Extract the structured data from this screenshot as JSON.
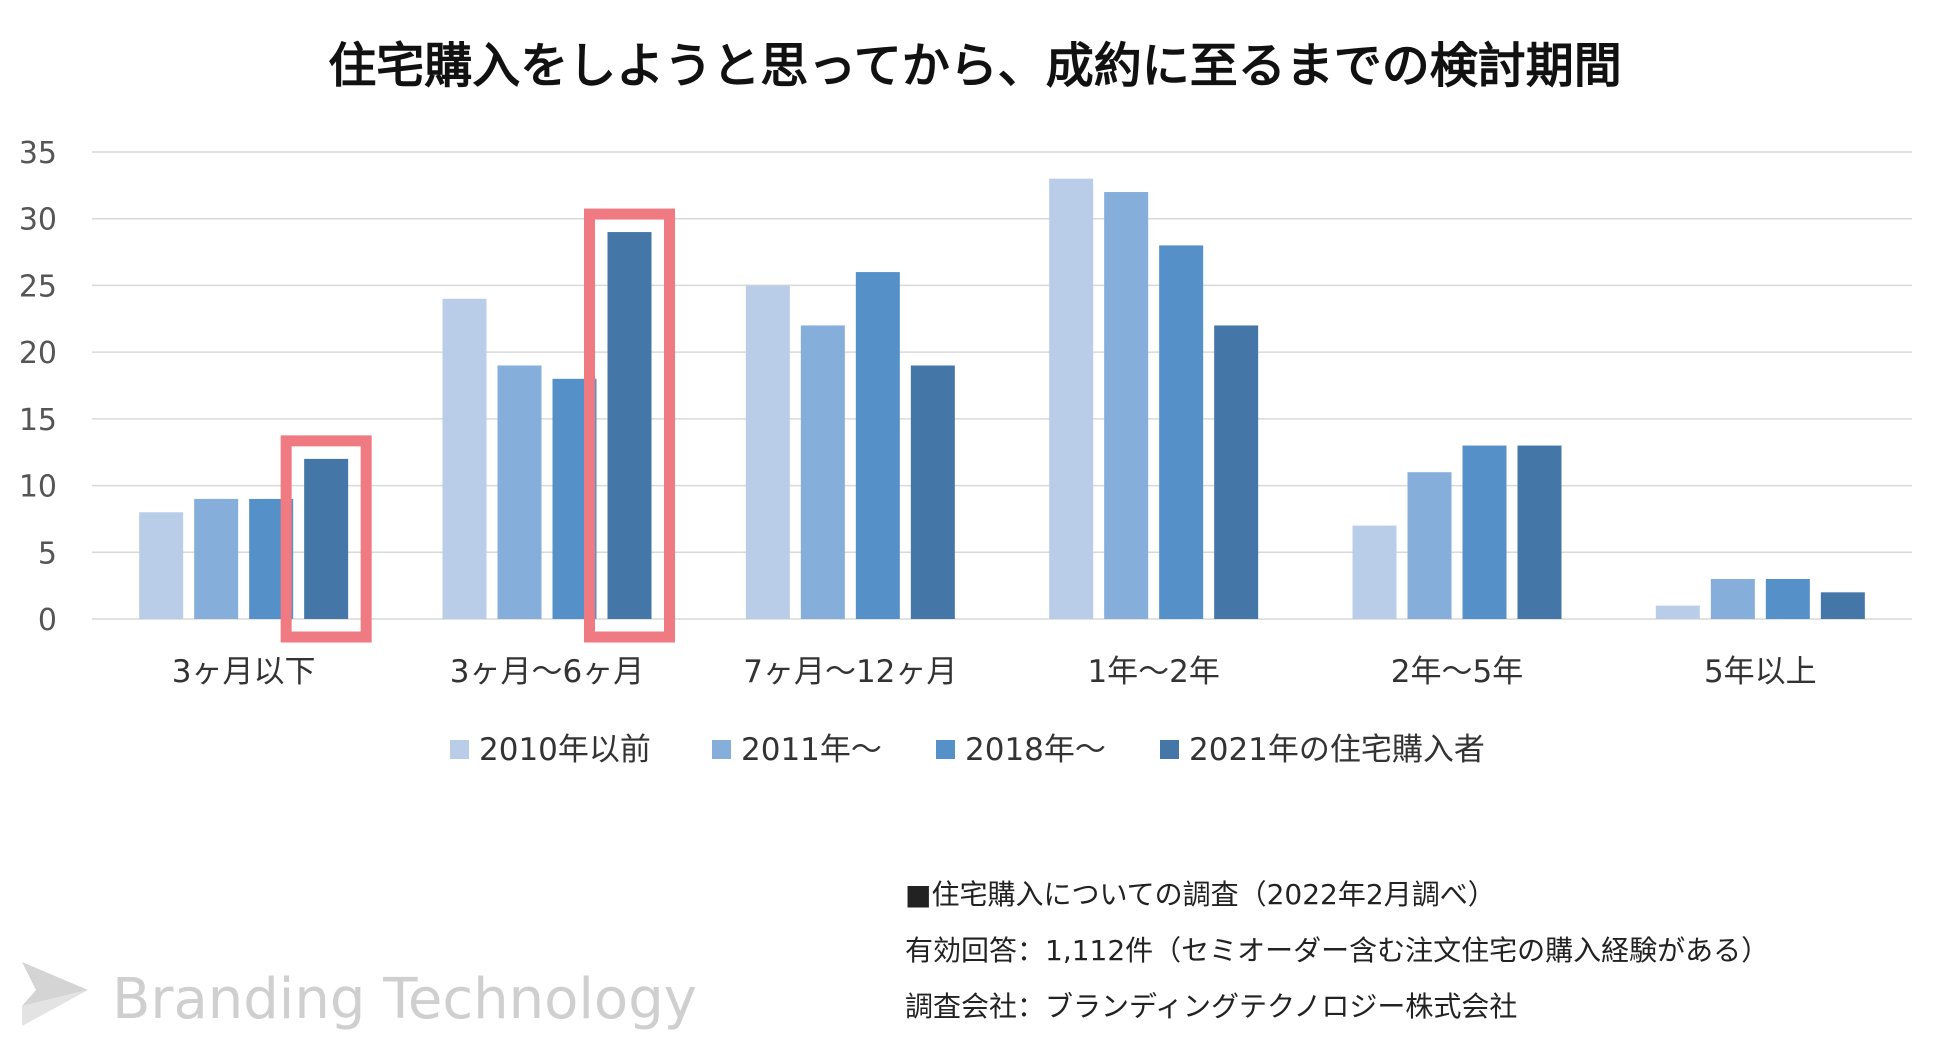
{
  "chart_data": {
    "type": "bar",
    "title": "住宅購入をしようと思ってから、成約に至るまでの検討期間",
    "xlabel": "",
    "ylabel": "",
    "ylim": [
      0,
      35
    ],
    "yticks": [
      "0",
      "5",
      "10",
      "15",
      "20",
      "25",
      "30",
      "35"
    ],
    "grid": true,
    "legend_position": "bottom",
    "categories": [
      "3ヶ月以下",
      "3ヶ月〜6ヶ月",
      "7ヶ月〜12ヶ月",
      "1年〜2年",
      "2年〜5年",
      "5年以上"
    ],
    "series": [
      {
        "name": "2010年以前",
        "color": "#b9cde8",
        "values": [
          8,
          24,
          25,
          33,
          7,
          1
        ]
      },
      {
        "name": "2011年〜",
        "color": "#85aedb",
        "values": [
          9,
          19,
          22,
          32,
          11,
          3
        ]
      },
      {
        "name": "2018年〜",
        "color": "#5590c8",
        "values": [
          9,
          18,
          26,
          28,
          13,
          3
        ]
      },
      {
        "name": "2021年の住宅購入者",
        "color": "#4477a8",
        "values": [
          12,
          29,
          19,
          22,
          13,
          2
        ]
      }
    ],
    "highlights": [
      {
        "category": "3ヶ月以下",
        "series": "2021年の住宅購入者"
      },
      {
        "category": "3ヶ月〜6ヶ月",
        "series": "2021年の住宅購入者"
      }
    ],
    "highlight_color": "#f07a82",
    "grid_color": "#d9d9d9"
  },
  "notes": {
    "line1": "■住宅購入についての調査（2022年2月調べ）",
    "line2": "有効回答：1,112件（セミオーダー含む注文住宅の購入経験がある）",
    "line3": "調査会社：ブランディングテクノロジー株式会社"
  },
  "brand": {
    "name": "Branding Technology",
    "logo_icon": "arrow-logo-icon",
    "color": "#cfcfcf"
  }
}
